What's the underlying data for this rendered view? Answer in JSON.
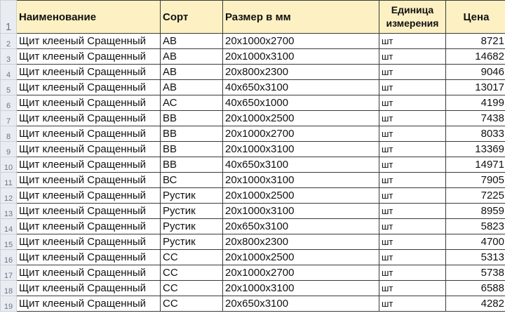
{
  "headers": {
    "row_num": "1",
    "name": "Наименование",
    "grade": "Сорт",
    "size": "Размер в мм",
    "unit_line1": "Единица",
    "unit_line2": "измерения",
    "price": "Цена"
  },
  "rows": [
    {
      "n": "2",
      "name": "Щит клееный Сращенный",
      "grade": "АВ",
      "size": "20x1000x2700",
      "unit": "шт",
      "price": "8721"
    },
    {
      "n": "3",
      "name": "Щит клееный Сращенный",
      "grade": "АВ",
      "size": "20x1000x3100",
      "unit": "шт",
      "price": "14682"
    },
    {
      "n": "4",
      "name": "Щит клееный Сращенный",
      "grade": "АВ",
      "size": "20x800x2300",
      "unit": "шт",
      "price": "9046"
    },
    {
      "n": "5",
      "name": "Щит клееный Сращенный",
      "grade": "АВ",
      "size": "40x650x3100",
      "unit": "шт",
      "price": "13017"
    },
    {
      "n": "6",
      "name": "Щит клееный Сращенный",
      "grade": "АС",
      "size": "40x650x1000",
      "unit": "шт",
      "price": "4199"
    },
    {
      "n": "7",
      "name": "Щит клееный Сращенный",
      "grade": "ВВ",
      "size": "20x1000x2500",
      "unit": "шт",
      "price": "7438"
    },
    {
      "n": "8",
      "name": "Щит клееный Сращенный",
      "grade": "ВВ",
      "size": "20x1000x2700",
      "unit": "шт",
      "price": "8033"
    },
    {
      "n": "9",
      "name": "Щит клееный Сращенный",
      "grade": "ВВ",
      "size": "20x1000x3100",
      "unit": "шт",
      "price": "13369"
    },
    {
      "n": "10",
      "name": "Щит клееный Сращенный",
      "grade": "ВВ",
      "size": "40x650x3100",
      "unit": "шт",
      "price": "14971"
    },
    {
      "n": "11",
      "name": "Щит клееный Сращенный",
      "grade": "ВС",
      "size": "20x1000x3100",
      "unit": "шт",
      "price": "7905"
    },
    {
      "n": "12",
      "name": "Щит клееный Сращенный",
      "grade": "Рустик",
      "size": "20x1000x2500",
      "unit": "шт",
      "price": "7225"
    },
    {
      "n": "13",
      "name": "Щит клееный Сращенный",
      "grade": "Рустик",
      "size": "20x1000x3100",
      "unit": "шт",
      "price": "8959"
    },
    {
      "n": "14",
      "name": "Щит клееный Сращенный",
      "grade": "Рустик",
      "size": "20x650x3100",
      "unit": "шт",
      "price": "5823"
    },
    {
      "n": "15",
      "name": "Щит клееный Сращенный",
      "grade": "Рустик",
      "size": "20x800x2300",
      "unit": "шт",
      "price": "4700"
    },
    {
      "n": "16",
      "name": "Щит клееный Сращенный",
      "grade": "СС",
      "size": "20x1000x2500",
      "unit": "шт",
      "price": "5313"
    },
    {
      "n": "17",
      "name": "Щит клееный Сращенный",
      "grade": "СС",
      "size": "20x1000x2700",
      "unit": "шт",
      "price": "5738"
    },
    {
      "n": "18",
      "name": "Щит клееный Сращенный",
      "grade": "СС",
      "size": "20x1000x3100",
      "unit": "шт",
      "price": "6588"
    },
    {
      "n": "19",
      "name": "Щит клееный Сращенный",
      "grade": "СС",
      "size": "20x650x3100",
      "unit": "шт",
      "price": "4282"
    }
  ]
}
